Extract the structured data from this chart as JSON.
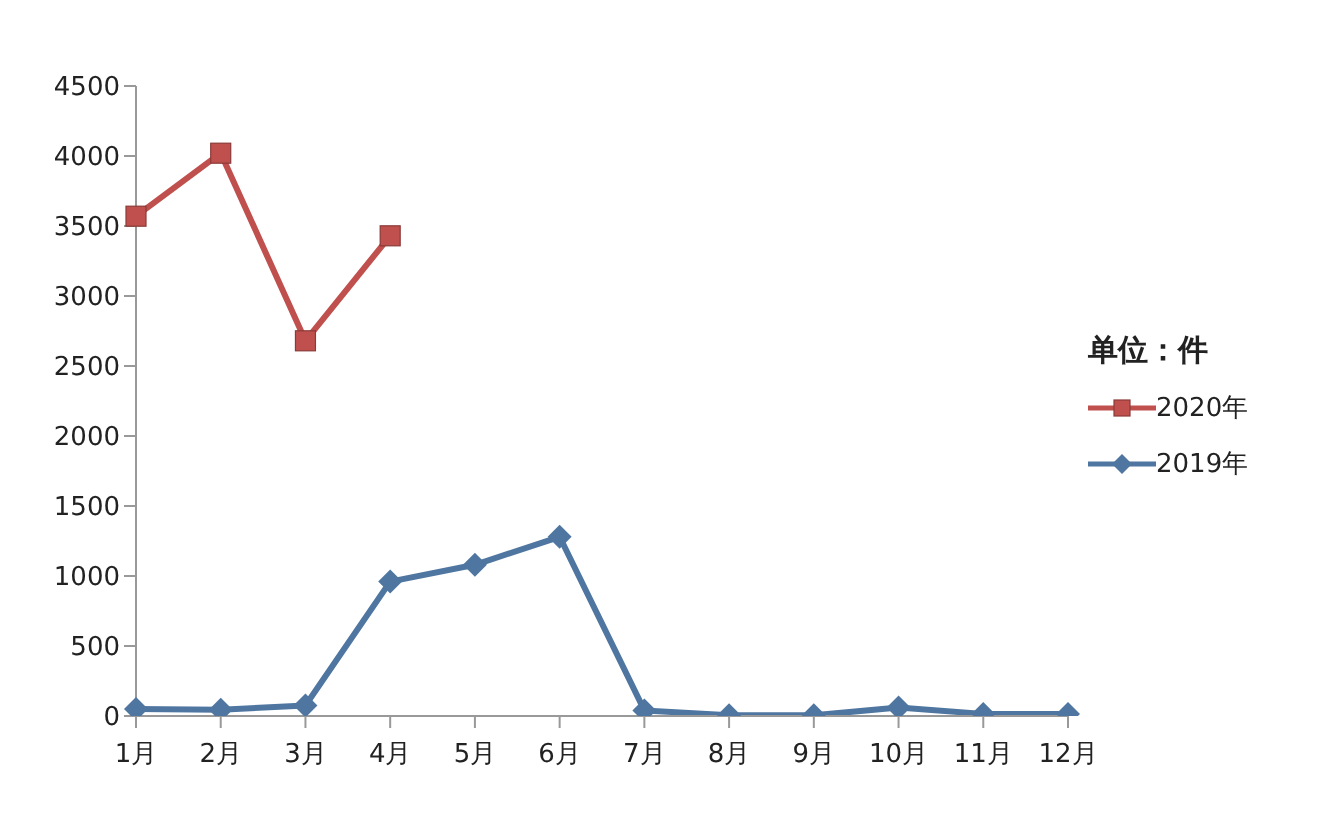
{
  "chart_data": {
    "type": "line",
    "legend_title": "单位：件",
    "categories": [
      "1月",
      "2月",
      "3月",
      "4月",
      "5月",
      "6月",
      "7月",
      "8月",
      "9月",
      "10月",
      "11月",
      "12月"
    ],
    "series": [
      {
        "name": "2020年",
        "color": "#c0504d",
        "marker": "square",
        "values": [
          3570,
          4020,
          2680,
          3430,
          null,
          null,
          null,
          null,
          null,
          null,
          null,
          null
        ]
      },
      {
        "name": "2019年",
        "color": "#4f76a0",
        "marker": "diamond",
        "values": [
          50,
          45,
          75,
          960,
          1080,
          1280,
          40,
          5,
          5,
          60,
          15,
          15
        ]
      }
    ],
    "ylim": [
      0,
      4500
    ],
    "yticks": [
      0,
      500,
      1000,
      1500,
      2000,
      2500,
      3000,
      3500,
      4000,
      4500
    ],
    "grid": false,
    "legend": "right",
    "line_style": "solid"
  }
}
